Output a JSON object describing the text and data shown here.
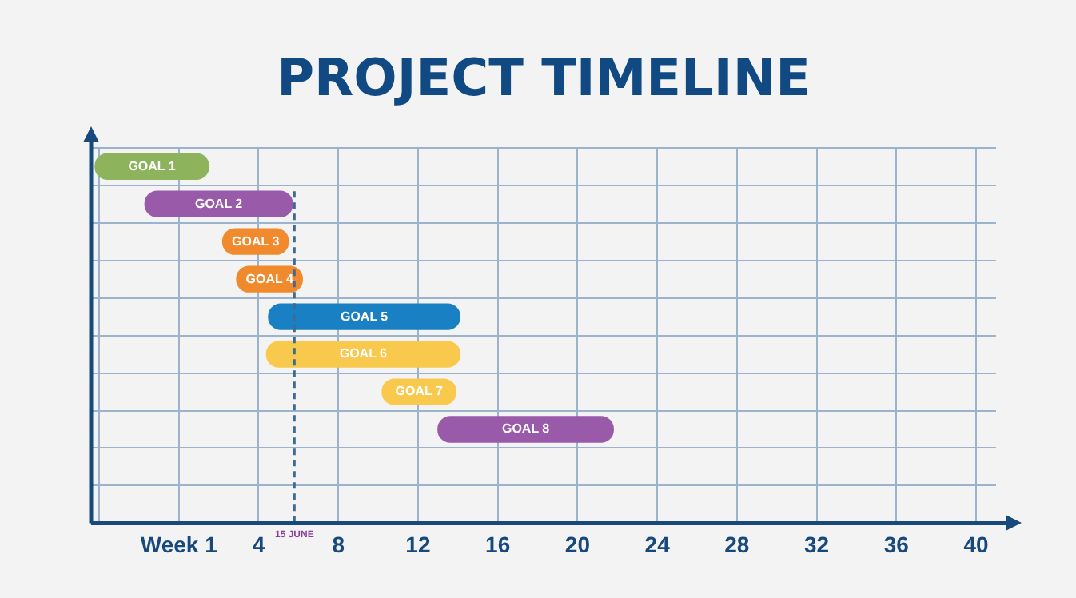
{
  "chart_data": {
    "type": "bar",
    "title": "PROJECT TIMELINE",
    "orientation": "horizontal",
    "categories": [
      "GOAL 1",
      "GOAL 2",
      "GOAL 3",
      "GOAL 4",
      "GOAL 5",
      "GOAL 6",
      "GOAL 7",
      "GOAL 8",
      null,
      null
    ],
    "base": [
      -4.2,
      -1.7,
      2.2,
      2.9,
      4.5,
      4.4,
      10.2,
      13.0,
      null,
      null
    ],
    "values": [
      5.7,
      7.4,
      3.3,
      3.3,
      9.6,
      9.7,
      3.7,
      8.8,
      null,
      null
    ],
    "colors": [
      "#8db35c",
      "#9a5aaa",
      "#f08a2c",
      "#f08a2c",
      "#1a80c4",
      "#f9c94e",
      "#f9c94e",
      "#9a5aaa",
      null,
      null
    ],
    "xlim": [
      -4.4,
      41
    ],
    "xticks": [
      {
        "value": -4,
        "label": null
      },
      {
        "value": 0,
        "label": "Week 1"
      },
      4,
      8,
      12,
      16,
      20,
      24,
      28,
      32,
      36,
      40
    ],
    "ref_lines": [
      {
        "axis": "x",
        "value": 5.8,
        "label": "15 JUNE",
        "color": "#3f6a94",
        "line_style": "dashed"
      }
    ],
    "grid": true,
    "legend": false,
    "tick_labels": "x"
  }
}
